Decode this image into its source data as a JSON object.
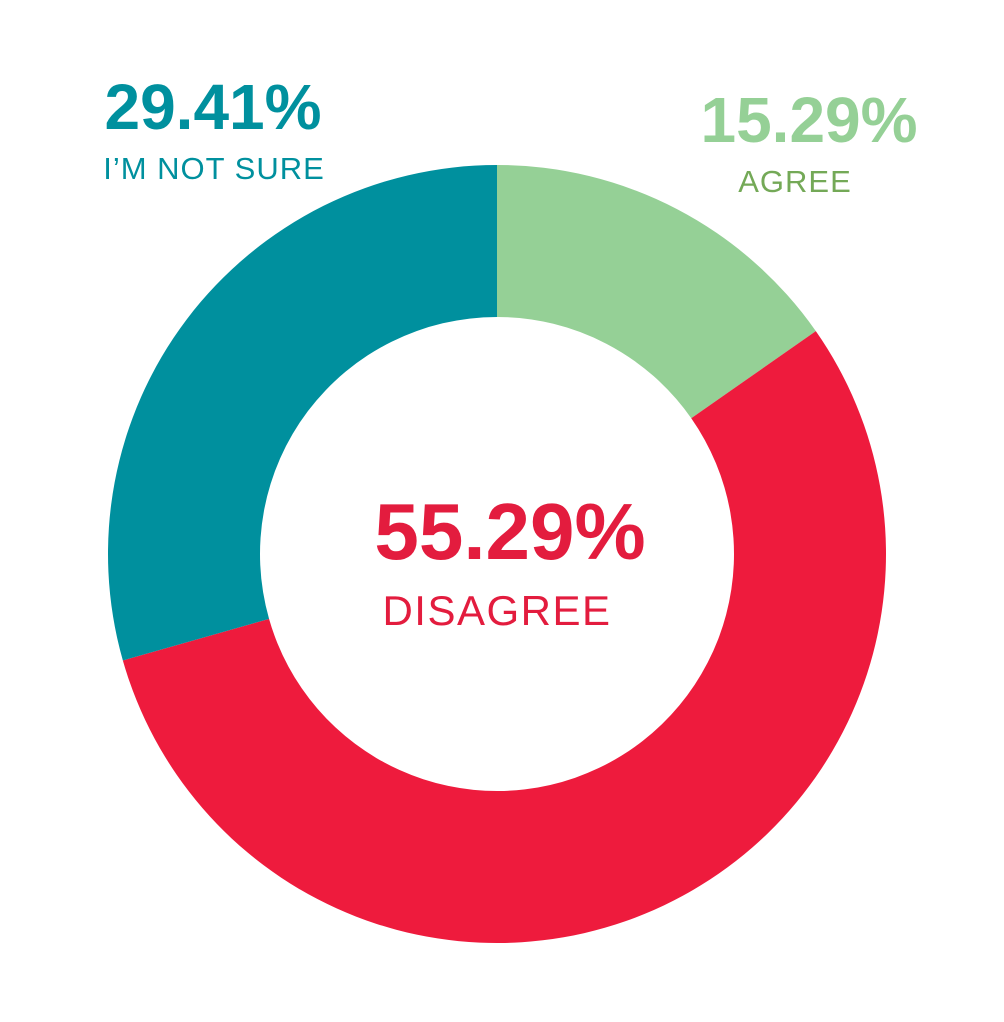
{
  "chart_data": {
    "type": "pie",
    "variant": "donut",
    "start_angle_deg": 0,
    "direction": "clockwise",
    "slices": [
      {
        "name": "AGREE",
        "value": 15.29,
        "value_label": "15.29%",
        "color": "#95D096",
        "value_label_color": "#95D096",
        "category_label_color": "#74A957",
        "label_position": "top-right"
      },
      {
        "name": "DISAGREE",
        "value": 55.29,
        "value_label": "55.29%",
        "color": "#EE1B3D",
        "value_label_color": "#E31C3E",
        "category_label_color": "#E31C3E",
        "label_position": "center"
      },
      {
        "name": "I’M NOT SURE",
        "value": 29.41,
        "value_label": "29.41%",
        "color": "#00909E",
        "value_label_color": "#00909E",
        "category_label_color": "#00909E",
        "label_position": "top-left"
      }
    ]
  }
}
